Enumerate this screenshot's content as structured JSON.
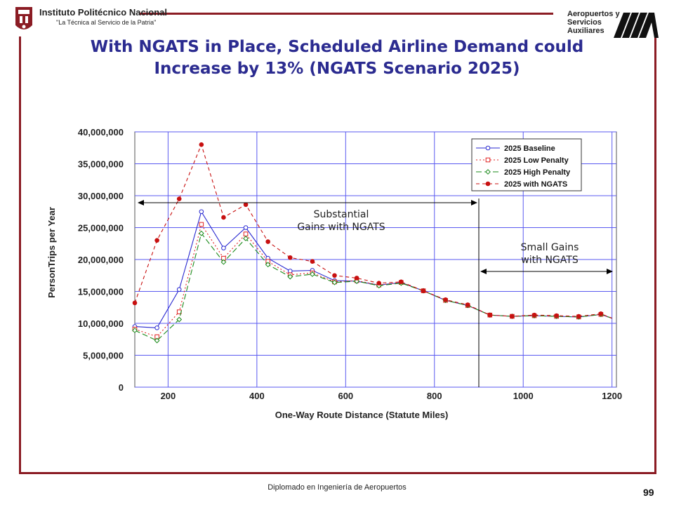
{
  "header": {
    "institution_name": "Instituto Politécnico Nacional",
    "institution_motto": "\"La Técnica al Servicio de la Patria\"",
    "partner_line1": "Aeropuertos y",
    "partner_line2": "Servicios",
    "partner_line3": "Auxiliares"
  },
  "slide": {
    "title_line1": "With NGATS in Place, Scheduled Airline Demand could",
    "title_line2": "Increase by 13% (NGATS Scenario 2025)"
  },
  "chart_data": {
    "type": "line",
    "title": "",
    "xlabel": "One-Way Route Distance (Statute Miles)",
    "ylabel": "PersonTrips per Year",
    "xlim": [
      125,
      1210
    ],
    "ylim": [
      0,
      40000000
    ],
    "grid": true,
    "legend_position": "top-right",
    "x_ticks": [
      200,
      400,
      600,
      800,
      1000,
      1200
    ],
    "y_ticks": [
      0,
      5000000,
      10000000,
      15000000,
      20000000,
      25000000,
      30000000,
      35000000,
      40000000
    ],
    "y_tick_labels": [
      "0",
      "5,000,000",
      "10,000,000",
      "15,000,000",
      "20,000,000",
      "25,000,000",
      "30,000,000",
      "35,000,000",
      "40,000,000"
    ],
    "x": [
      125,
      175,
      225,
      275,
      325,
      375,
      425,
      475,
      525,
      575,
      625,
      675,
      725,
      775,
      825,
      875,
      925,
      975,
      1025,
      1075,
      1125,
      1175,
      1200
    ],
    "series": [
      {
        "name": "2025 Baseline",
        "color": "#2a2ad0",
        "dash": "",
        "marker": "circle-open",
        "values": [
          9500000,
          9300000,
          15300000,
          27500000,
          21800000,
          25000000,
          20200000,
          18200000,
          18300000,
          16700000,
          16600000,
          16000000,
          16400000,
          15100000,
          13600000,
          12800000,
          11300000,
          11100000,
          11200000,
          11100000,
          11000000,
          11400000,
          10800000
        ]
      },
      {
        "name": "2025 Low Penalty",
        "color": "#e02020",
        "dash": "2,3",
        "marker": "square-open",
        "values": [
          9100000,
          7900000,
          11800000,
          25500000,
          20200000,
          24000000,
          19700000,
          17600000,
          17900000,
          16500000,
          16700000,
          16000000,
          16400000,
          15100000,
          13600000,
          12800000,
          11300000,
          11100000,
          11200000,
          11100000,
          11000000,
          11400000,
          10800000
        ]
      },
      {
        "name": "2025 High Penalty",
        "color": "#1a8a1a",
        "dash": "8,4",
        "marker": "diamond-open",
        "values": [
          8900000,
          7300000,
          10600000,
          24100000,
          19600000,
          23300000,
          19200000,
          17300000,
          17700000,
          16400000,
          16600000,
          15900000,
          16300000,
          15100000,
          13600000,
          12800000,
          11300000,
          11100000,
          11200000,
          11100000,
          11000000,
          11400000,
          10800000
        ]
      },
      {
        "name": "2025 with NGATS",
        "color": "#c81010",
        "dash": "5,4",
        "marker": "circle-filled",
        "values": [
          13200000,
          23000000,
          29500000,
          38000000,
          26600000,
          28600000,
          22800000,
          20300000,
          19700000,
          17500000,
          17100000,
          16300000,
          16500000,
          15100000,
          13700000,
          12900000,
          11300000,
          11100000,
          11300000,
          11200000,
          11100000,
          11500000,
          10800000
        ]
      }
    ],
    "annotations": {
      "substantial": "Substantial\nGains with NGATS",
      "small": "Small Gains\nwith NGATS",
      "split_x": 900
    }
  },
  "footer": {
    "course": "Diplomado en Ingeniería de Aeropuertos",
    "page_number": "99"
  }
}
